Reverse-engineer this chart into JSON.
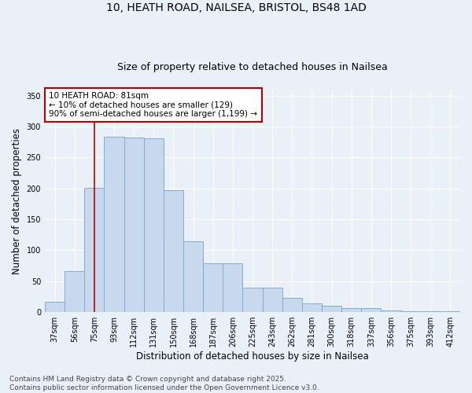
{
  "title": "10, HEATH ROAD, NAILSEA, BRISTOL, BS48 1AD",
  "subtitle": "Size of property relative to detached houses in Nailsea",
  "xlabel": "Distribution of detached houses by size in Nailsea",
  "ylabel": "Number of detached properties",
  "bar_color": "#c8d9ee",
  "bar_edge_color": "#7aaed6",
  "background_color": "#eaf0f8",
  "grid_color": "#ffffff",
  "categories": [
    "37sqm",
    "56sqm",
    "75sqm",
    "93sqm",
    "112sqm",
    "131sqm",
    "150sqm",
    "168sqm",
    "187sqm",
    "206sqm",
    "225sqm",
    "243sqm",
    "262sqm",
    "281sqm",
    "300sqm",
    "318sqm",
    "337sqm",
    "356sqm",
    "375sqm",
    "393sqm",
    "412sqm"
  ],
  "values": [
    17,
    66,
    201,
    284,
    283,
    281,
    197,
    115,
    79,
    79,
    40,
    40,
    23,
    14,
    10,
    6,
    6,
    3,
    2,
    1,
    2
  ],
  "ylim": [
    0,
    360
  ],
  "yticks": [
    0,
    50,
    100,
    150,
    200,
    250,
    300,
    350
  ],
  "vline_x": 2.0,
  "vline_color": "#bb0000",
  "annotation_text": "10 HEATH ROAD: 81sqm\n← 10% of detached houses are smaller (129)\n90% of semi-detached houses are larger (1,199) →",
  "annotation_box_facecolor": "#ffffff",
  "annotation_box_edgecolor": "#bb0000",
  "footer_text": "Contains HM Land Registry data © Crown copyright and database right 2025.\nContains public sector information licensed under the Open Government Licence v3.0.",
  "title_fontsize": 10,
  "subtitle_fontsize": 9,
  "xlabel_fontsize": 8.5,
  "ylabel_fontsize": 8.5,
  "tick_fontsize": 7,
  "annotation_fontsize": 7.5,
  "footer_fontsize": 6.5
}
